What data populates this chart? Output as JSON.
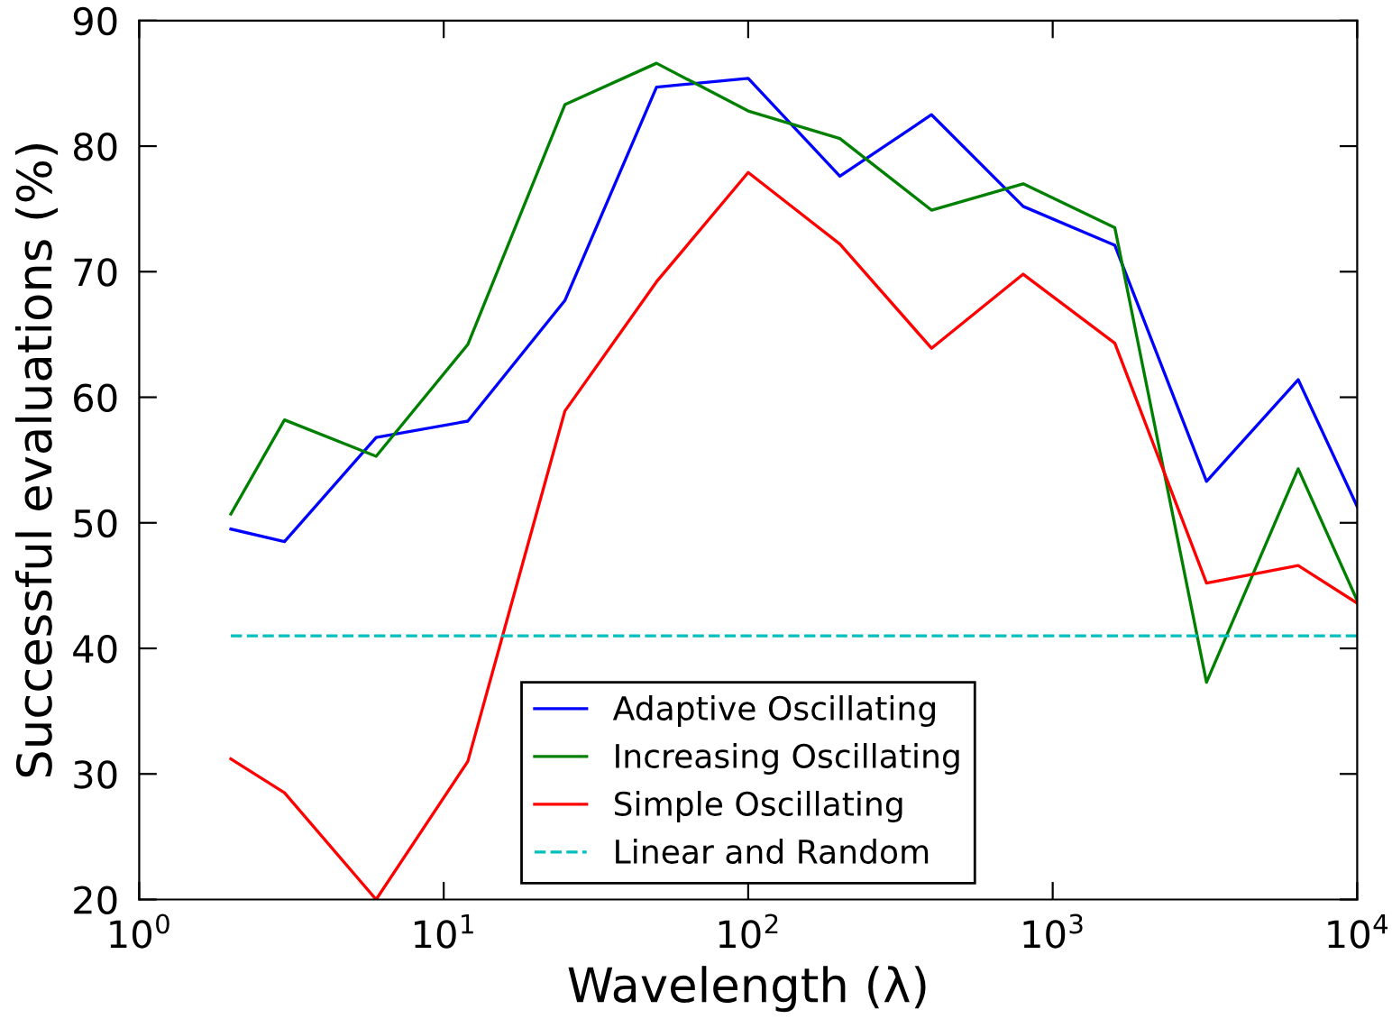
{
  "chart_data": {
    "type": "line",
    "xlabel": "Wavelength (λ)",
    "ylabel": "Successful evaluations (%)",
    "x": [
      2,
      3,
      6,
      12,
      25,
      50,
      100,
      200,
      400,
      800,
      1600,
      3200,
      6400,
      10000
    ],
    "series": [
      {
        "name": "Adaptive Oscillating",
        "color": "#0000ff",
        "values": [
          49.5,
          48.5,
          56.8,
          58.1,
          67.7,
          84.7,
          85.4,
          77.6,
          82.5,
          75.2,
          72.1,
          53.3,
          61.4,
          51.3
        ]
      },
      {
        "name": "Increasing Oscillating",
        "color": "#008000",
        "values": [
          50.7,
          58.2,
          55.3,
          64.2,
          83.3,
          86.6,
          82.8,
          80.6,
          74.9,
          77.0,
          73.5,
          37.3,
          54.3,
          43.8
        ]
      },
      {
        "name": "Simple Oscillating",
        "color": "#ff0000",
        "values": [
          31.2,
          28.5,
          20.0,
          31.0,
          58.9,
          69.2,
          77.9,
          72.2,
          63.9,
          69.8,
          64.3,
          45.2,
          46.6,
          43.6
        ]
      },
      {
        "name": "Linear and Random",
        "color": "#00bfbf",
        "x": [
          2,
          10000
        ],
        "values": [
          41,
          41
        ],
        "line_style": "dashed"
      }
    ],
    "log": "x",
    "xlim": [
      1,
      10000
    ],
    "xticks": [
      {
        "value": 1,
        "label": "10$^{0}$"
      },
      {
        "value": 10,
        "label": "10$^{1}$"
      },
      {
        "value": 100,
        "label": "10$^{2}$"
      },
      {
        "value": 1000,
        "label": "10$^{3}$"
      },
      {
        "value": 10000,
        "label": "10$^{4}$"
      }
    ],
    "ylim": [
      20,
      90
    ],
    "yticks": [
      20,
      30,
      40,
      50,
      60,
      70,
      80,
      90
    ],
    "legend": "bottom",
    "grid": false,
    "marker": "none"
  }
}
